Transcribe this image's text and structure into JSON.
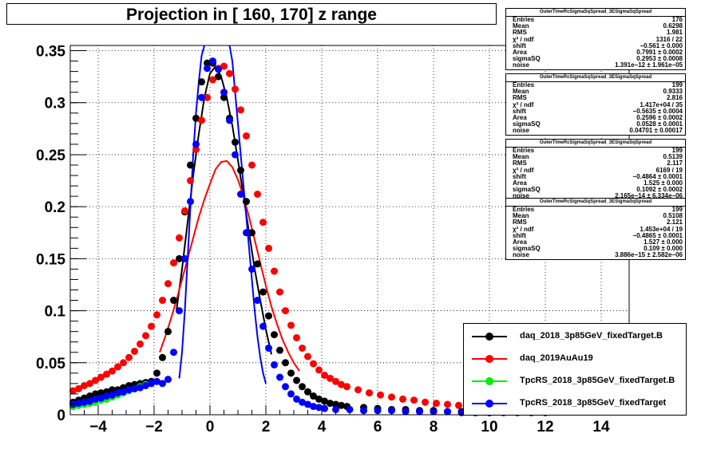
{
  "title": "Projection in [ 160, 170] z range",
  "stat_boxes": [
    {
      "header": "OuterTimeRcSigmaSqSpread_3ESigmaSqSpread",
      "rows": [
        {
          "k": "Entries",
          "v": "176"
        },
        {
          "k": "Mean",
          "v": "0.6298"
        },
        {
          "k": "RMS",
          "v": "1.981"
        },
        {
          "k": "χ² / ndf",
          "v": "1316 / 22"
        },
        {
          "k": "shift",
          "v": "−0.561 ± 0.000"
        },
        {
          "k": "Area",
          "v": "0.7991 ± 0.0002"
        },
        {
          "k": "sigmaSQ",
          "v": "0.2953 ± 0.0008"
        },
        {
          "k": "noise",
          "v": "1.391e−12 ± 1.961e−05"
        }
      ]
    },
    {
      "header": "OuterTimeRcSigmaSqSpread_3ESigmaSqSpread",
      "rows": [
        {
          "k": "Entries",
          "v": "199"
        },
        {
          "k": "Mean",
          "v": "0.9333"
        },
        {
          "k": "RMS",
          "v": "2.816"
        },
        {
          "k": "χ² / ndf",
          "v": "1.417e+04 / 35"
        },
        {
          "k": "shift",
          "v": "−0.5635 ± 0.0004"
        },
        {
          "k": "Area",
          "v": "0.2596 ± 0.0002"
        },
        {
          "k": "sigmaSQ",
          "v": "0.0528 ± 0.0001"
        },
        {
          "k": "noise",
          "v": "0.04701 ± 0.00017"
        }
      ]
    },
    {
      "header": "OuterTimeRcSigmaSqSpread_3ESigmaSqSpread",
      "rows": [
        {
          "k": "Entries",
          "v": "199"
        },
        {
          "k": "Mean",
          "v": "0.5139"
        },
        {
          "k": "RMS",
          "v": "2.117"
        },
        {
          "k": "χ² / ndf",
          "v": "6169 / 19"
        },
        {
          "k": "shift",
          "v": "−0.4864 ± 0.0001"
        },
        {
          "k": "Area",
          "v": "1.525 ± 0.000"
        },
        {
          "k": "sigmaSQ",
          "v": "0.1092 ± 0.0002"
        },
        {
          "k": "noise",
          "v": "2.165e−14 ± 6.334e−06"
        }
      ]
    },
    {
      "header": "OuterTimeRcSigmaSqSpread_3ESigmaSqSpread",
      "rows": [
        {
          "k": "Entries",
          "v": "199"
        },
        {
          "k": "Mean",
          "v": "0.5108"
        },
        {
          "k": "RMS",
          "v": "2.121"
        },
        {
          "k": "χ² / ndf",
          "v": "1.453e+04 / 19"
        },
        {
          "k": "shift",
          "v": "−0.4865 ± 0.0001"
        },
        {
          "k": "Area",
          "v": "1.527 ± 0.000"
        },
        {
          "k": "sigmaSQ",
          "v": "0.109 ± 0.000"
        },
        {
          "k": "noise",
          "v": "3.886e−15 ± 2.582e−06"
        }
      ]
    }
  ],
  "legend": [
    {
      "label": "daq_2018_3p85GeV_fixedTarget.B",
      "color": "#000000"
    },
    {
      "label": "daq_2019AuAu19",
      "color": "#ff0000"
    },
    {
      "label": "TpcRS_2018_3p85GeV_fixedTarget.B",
      "color": "#00ee00"
    },
    {
      "label": "TpcRS_2018_3p85GeV_fixedTarget",
      "color": "#0000ff"
    }
  ],
  "chart_data": {
    "type": "scatter",
    "title": "Projection in [ 160, 170] z range",
    "xlim": [
      -5,
      15
    ],
    "ylim": [
      0,
      0.355
    ],
    "grid": true,
    "legend_position": "bottom-right",
    "x_ticks": [
      "−4",
      "−2",
      "0",
      "2",
      "4",
      "6",
      "8",
      "10",
      "12",
      "14"
    ],
    "x_tick_values": [
      -4,
      -2,
      0,
      2,
      4,
      6,
      8,
      10,
      12,
      14
    ],
    "y_ticks": [
      "0",
      "0.05",
      "0.1",
      "0.15",
      "0.2",
      "0.25",
      "0.3",
      "0.35"
    ],
    "y_tick_values": [
      0,
      0.05,
      0.1,
      0.15,
      0.2,
      0.25,
      0.3,
      0.35
    ],
    "series": [
      {
        "name": "daq_2018_3p85GeV_fixedTarget.B",
        "color": "#000000",
        "x": [
          -4.9,
          -4.7,
          -4.5,
          -4.3,
          -4.1,
          -3.9,
          -3.7,
          -3.5,
          -3.3,
          -3.1,
          -2.9,
          -2.7,
          -2.5,
          -2.3,
          -2.1,
          -1.9,
          -1.7,
          -1.5,
          -1.3,
          -1.1,
          -0.9,
          -0.7,
          -0.5,
          -0.3,
          -0.1,
          0.1,
          0.3,
          0.5,
          0.7,
          0.9,
          1.1,
          1.3,
          1.5,
          1.7,
          1.9,
          2.1,
          2.3,
          2.5,
          2.7,
          2.9,
          3.1,
          3.3,
          3.5,
          3.7,
          3.9,
          4.1,
          4.3,
          4.5,
          4.7,
          4.9,
          5.5,
          6.0,
          6.5,
          7.0,
          7.5,
          8.0,
          8.5,
          9.0,
          9.5,
          10.0
        ],
        "y": [
          0.012,
          0.014,
          0.016,
          0.018,
          0.02,
          0.021,
          0.022,
          0.024,
          0.024,
          0.026,
          0.028,
          0.029,
          0.03,
          0.031,
          0.032,
          0.04,
          0.055,
          0.08,
          0.11,
          0.15,
          0.195,
          0.24,
          0.285,
          0.32,
          0.338,
          0.338,
          0.325,
          0.305,
          0.285,
          0.262,
          0.235,
          0.205,
          0.175,
          0.145,
          0.118,
          0.095,
          0.077,
          0.062,
          0.05,
          0.04,
          0.033,
          0.027,
          0.022,
          0.018,
          0.015,
          0.013,
          0.011,
          0.01,
          0.009,
          0.008,
          0.007,
          0.006,
          0.005,
          0.005,
          0.004,
          0.004,
          0.003,
          0.003,
          0.002,
          0.002
        ]
      },
      {
        "name": "daq_2019AuAu19",
        "color": "#ff0000",
        "x": [
          -4.9,
          -4.7,
          -4.5,
          -4.3,
          -4.1,
          -3.9,
          -3.7,
          -3.5,
          -3.3,
          -3.1,
          -2.9,
          -2.7,
          -2.5,
          -2.3,
          -2.1,
          -1.9,
          -1.7,
          -1.5,
          -1.3,
          -1.1,
          -0.9,
          -0.7,
          -0.5,
          -0.3,
          -0.1,
          0.1,
          0.3,
          0.5,
          0.7,
          0.9,
          1.1,
          1.3,
          1.5,
          1.7,
          1.9,
          2.1,
          2.3,
          2.5,
          2.7,
          2.9,
          3.1,
          3.3,
          3.5,
          3.7,
          3.9,
          4.1,
          4.3,
          4.5,
          4.7,
          4.9,
          5.3,
          5.7,
          6.1,
          6.5,
          6.9,
          7.3,
          7.7,
          8.1,
          8.5,
          8.9,
          9.3,
          9.7
        ],
        "y": [
          0.023,
          0.025,
          0.028,
          0.03,
          0.033,
          0.036,
          0.039,
          0.042,
          0.046,
          0.05,
          0.055,
          0.061,
          0.068,
          0.076,
          0.085,
          0.096,
          0.11,
          0.126,
          0.146,
          0.17,
          0.196,
          0.225,
          0.255,
          0.283,
          0.305,
          0.322,
          0.333,
          0.335,
          0.328,
          0.313,
          0.293,
          0.268,
          0.24,
          0.212,
          0.185,
          0.16,
          0.138,
          0.118,
          0.1,
          0.086,
          0.074,
          0.064,
          0.056,
          0.049,
          0.043,
          0.038,
          0.035,
          0.032,
          0.029,
          0.027,
          0.024,
          0.021,
          0.019,
          0.017,
          0.015,
          0.014,
          0.012,
          0.011,
          0.01,
          0.009,
          0.008,
          0.007
        ]
      },
      {
        "name": "TpcRS_2018_3p85GeV_fixedTarget.B",
        "color": "#00ee00",
        "x": [
          -4.9,
          -4.7,
          -4.5,
          -4.3,
          -4.1,
          -3.9,
          -3.7,
          -3.5,
          -3.3,
          -3.1,
          -2.9,
          -2.7,
          -2.5,
          -2.3
        ],
        "y": [
          0.008,
          0.009,
          0.01,
          0.011,
          0.012,
          0.014,
          0.015,
          0.017,
          0.019,
          0.021,
          0.023,
          0.025,
          0.027,
          0.029
        ]
      },
      {
        "name": "TpcRS_2018_3p85GeV_fixedTarget",
        "color": "#0000ff",
        "x": [
          -4.9,
          -4.7,
          -4.5,
          -4.3,
          -4.1,
          -3.9,
          -3.7,
          -3.5,
          -3.3,
          -3.1,
          -2.9,
          -2.7,
          -2.5,
          -2.3,
          -2.1,
          -1.9,
          -1.7,
          -1.5,
          -1.3,
          -1.1,
          -0.9,
          -0.7,
          -0.5,
          -0.3,
          -0.1,
          0.1,
          0.3,
          0.5,
          0.7,
          0.9,
          1.1,
          1.3,
          1.5,
          1.7,
          1.9,
          2.1,
          2.3,
          2.5,
          2.7,
          2.9,
          3.1,
          3.3,
          3.5,
          3.7,
          3.9,
          4.1,
          4.5,
          5.0,
          5.5,
          6.0,
          6.5,
          7.0,
          7.5,
          8.0,
          8.5,
          9.0,
          9.5,
          10.0,
          10.5,
          11.0,
          11.5,
          12.0
        ],
        "y": [
          0.01,
          0.011,
          0.012,
          0.013,
          0.015,
          0.016,
          0.018,
          0.019,
          0.021,
          0.022,
          0.024,
          0.025,
          0.026,
          0.028,
          0.03,
          0.032,
          0.03,
          0.034,
          0.06,
          0.1,
          0.15,
          0.205,
          0.26,
          0.305,
          0.333,
          0.34,
          0.332,
          0.31,
          0.283,
          0.25,
          0.212,
          0.175,
          0.14,
          0.11,
          0.085,
          0.064,
          0.048,
          0.036,
          0.027,
          0.02,
          0.015,
          0.012,
          0.01,
          0.008,
          0.007,
          0.006,
          0.005,
          0.005,
          0.004,
          0.004,
          0.004,
          0.003,
          0.003,
          0.003,
          0.003,
          0.002,
          0.002,
          0.002,
          0.002,
          0.002,
          0.002,
          0.002
        ]
      }
    ],
    "fits": [
      {
        "color": "#000000",
        "x": [
          -1.2,
          -1.0,
          -0.8,
          -0.6,
          -0.4,
          -0.2,
          0.0,
          0.2,
          0.4,
          0.6,
          0.8,
          1.0,
          1.2,
          1.4,
          1.6,
          1.8,
          2.0,
          2.2
        ],
        "y": [
          0.1,
          0.14,
          0.185,
          0.23,
          0.27,
          0.305,
          0.328,
          0.335,
          0.325,
          0.305,
          0.278,
          0.245,
          0.21,
          0.175,
          0.14,
          0.11,
          0.082,
          0.058
        ]
      },
      {
        "color": "#ff0000",
        "x": [
          -1.8,
          -1.6,
          -1.4,
          -1.2,
          -1.0,
          -0.8,
          -0.6,
          -0.4,
          -0.2,
          0.0,
          0.2,
          0.4,
          0.6,
          0.8,
          1.0,
          1.2,
          1.4,
          1.6,
          1.8,
          2.0,
          2.2,
          2.4,
          2.6,
          2.8,
          3.0,
          3.2
        ],
        "y": [
          0.06,
          0.075,
          0.092,
          0.11,
          0.13,
          0.15,
          0.17,
          0.19,
          0.207,
          0.222,
          0.236,
          0.243,
          0.244,
          0.238,
          0.226,
          0.21,
          0.19,
          0.168,
          0.146,
          0.124,
          0.104,
          0.087,
          0.072,
          0.06,
          0.05,
          0.042
        ]
      },
      {
        "color": "#0000ff",
        "x": [
          -1.1,
          -1.0,
          -0.9,
          -0.8,
          -0.7,
          -0.6,
          -0.5,
          -0.4,
          -0.3,
          -0.2
        ],
        "y": [
          0.035,
          0.06,
          0.1,
          0.15,
          0.2,
          0.25,
          0.29,
          0.32,
          0.345,
          0.36
        ]
      },
      {
        "color": "#0000ff",
        "x": [
          0.7,
          0.8,
          0.9,
          1.0,
          1.1,
          1.2,
          1.3,
          1.4,
          1.5,
          1.6,
          1.7,
          1.8,
          1.9,
          2.0
        ],
        "y": [
          0.36,
          0.34,
          0.31,
          0.28,
          0.25,
          0.22,
          0.19,
          0.16,
          0.13,
          0.1,
          0.075,
          0.055,
          0.04,
          0.03
        ]
      }
    ]
  }
}
